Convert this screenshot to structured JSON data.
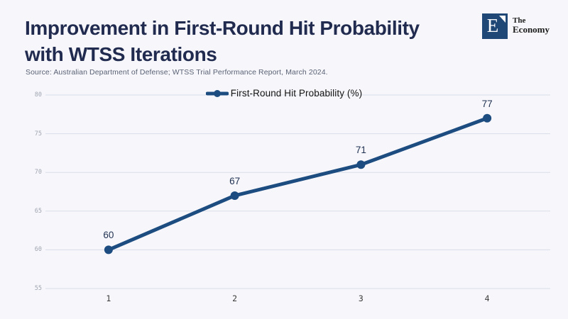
{
  "header": {
    "title_line1": "Improvement in First-Round Hit Probability",
    "title_line2": "with WTSS Iterations",
    "source": "Source: Australian Department of Defense; WTSS Trial Performance Report, March 2024."
  },
  "logo": {
    "letter": "E",
    "name_line1": "The",
    "name_line2": "Economy"
  },
  "chart_data": {
    "type": "line",
    "title": "Improvement in First-Round Hit Probability with WTSS Iterations",
    "x": [
      1,
      2,
      3,
      4
    ],
    "categories": [
      "1",
      "2",
      "3",
      "4"
    ],
    "series": [
      {
        "name": "First-Round Hit Probability (%)",
        "values": [
          60,
          67,
          71,
          77
        ]
      }
    ],
    "data_labels": [
      "60",
      "67",
      "71",
      "77"
    ],
    "yticks": [
      55,
      60,
      65,
      70,
      75,
      80
    ],
    "ylim": [
      55,
      80
    ],
    "xlabel": "",
    "ylabel": "",
    "grid": true,
    "legend_position": "top-center"
  },
  "colors": {
    "background": "#f7f7fb",
    "line": "#1c4c80",
    "title": "#212b4f",
    "logo": "#1f4876",
    "gridline": "#d9dde7"
  }
}
